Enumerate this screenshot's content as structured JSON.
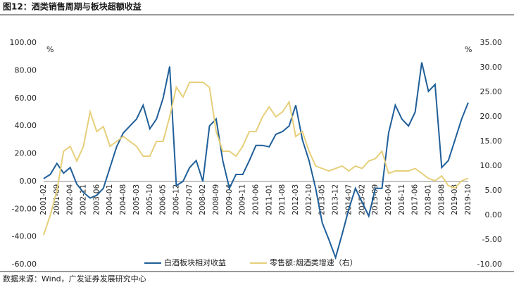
{
  "chart_data": {
    "type": "line",
    "title": "图12：酒类销售周期与板块超额收益",
    "source": "数据来源：Wind，广发证券发展研究中心",
    "y_unit": "%",
    "y2_unit": "%",
    "categories": [
      "2001-02",
      null,
      "2001-09",
      null,
      "2002-04",
      null,
      "2002-11",
      null,
      "2003-06",
      null,
      "2004-01",
      null,
      "2004-08",
      null,
      "2005-03",
      null,
      "2005-10",
      null,
      "2006-05",
      null,
      "2006-12",
      null,
      "2007-07",
      null,
      "2008-02",
      null,
      "2008-09",
      null,
      "2009-04",
      null,
      "2009-11",
      null,
      "2010-06",
      null,
      "2011-01",
      null,
      "2011-08",
      null,
      "2012-03",
      null,
      "2012-10",
      null,
      "2013-05",
      null,
      "2013-12",
      null,
      "2014-07",
      null,
      "2015-02",
      null,
      "2015-09",
      null,
      "2016-04",
      null,
      "2016-11",
      null,
      "2017-06",
      null,
      "2018-01",
      null,
      "2018-08",
      null,
      "2019-03",
      null,
      "2019-10"
    ],
    "series": [
      {
        "name": "白酒板块相对收益",
        "color": "#1f5f99",
        "values": [
          2,
          5,
          13,
          6,
          10,
          -2,
          -8,
          -12,
          -10,
          -5,
          10,
          25,
          35,
          40,
          45,
          55,
          38,
          45,
          60,
          83,
          -3,
          0,
          10,
          15,
          0,
          40,
          45,
          15,
          -5,
          5,
          5,
          15,
          26,
          26,
          25,
          34,
          36,
          40,
          55,
          30,
          15,
          -5,
          -30,
          -42,
          -55,
          -38,
          -20,
          -5,
          -15,
          -25,
          -5,
          -5,
          35,
          55,
          45,
          40,
          50,
          86,
          65,
          70,
          10,
          15,
          30,
          45,
          57
        ]
      },
      {
        "name": "零售额:烟酒类增速（右）",
        "color": "#e6cf7a",
        "axis": "y2",
        "values": [
          -4,
          0,
          5,
          13,
          14,
          11,
          14,
          21,
          17,
          18,
          14,
          15,
          16,
          15,
          14,
          12,
          12,
          15,
          15,
          20,
          26,
          24,
          27,
          27,
          27,
          26,
          17,
          13,
          13,
          12,
          14,
          17,
          17,
          20,
          22,
          20,
          21,
          23,
          16,
          17,
          13,
          10,
          9.5,
          9,
          9.5,
          10,
          9,
          10,
          9.5,
          11,
          11.5,
          13,
          8.5,
          9,
          9,
          9,
          9.5,
          8.5,
          7.5,
          7,
          8,
          6,
          5.5,
          7,
          7.5
        ]
      }
    ],
    "ylim": [
      -60,
      100
    ],
    "yticks": [
      {
        "value": 100,
        "label": "100.00"
      },
      {
        "value": 80,
        "label": "80.00"
      },
      {
        "value": 60,
        "label": "60.00"
      },
      {
        "value": 40,
        "label": "40.00"
      },
      {
        "value": 20,
        "label": "20.00"
      },
      {
        "value": 0,
        "label": "0.00"
      },
      {
        "value": -20,
        "label": "-20.00"
      },
      {
        "value": -40,
        "label": "-40.00"
      },
      {
        "value": -60,
        "label": "-60.00"
      }
    ],
    "y2lim": [
      -10,
      35
    ],
    "y2ticks": [
      {
        "value": 35,
        "label": "35.00"
      },
      {
        "value": 30,
        "label": "30.00"
      },
      {
        "value": 25,
        "label": "25.00"
      },
      {
        "value": 20,
        "label": "20.00"
      },
      {
        "value": 15,
        "label": "15.00"
      },
      {
        "value": 10,
        "label": "10.00"
      },
      {
        "value": 5,
        "label": "5.00"
      },
      {
        "value": 0,
        "label": "0.00"
      },
      {
        "value": -5,
        "label": "-5.00"
      },
      {
        "value": -10,
        "label": "-10.00"
      }
    ],
    "legend": "bottom"
  }
}
